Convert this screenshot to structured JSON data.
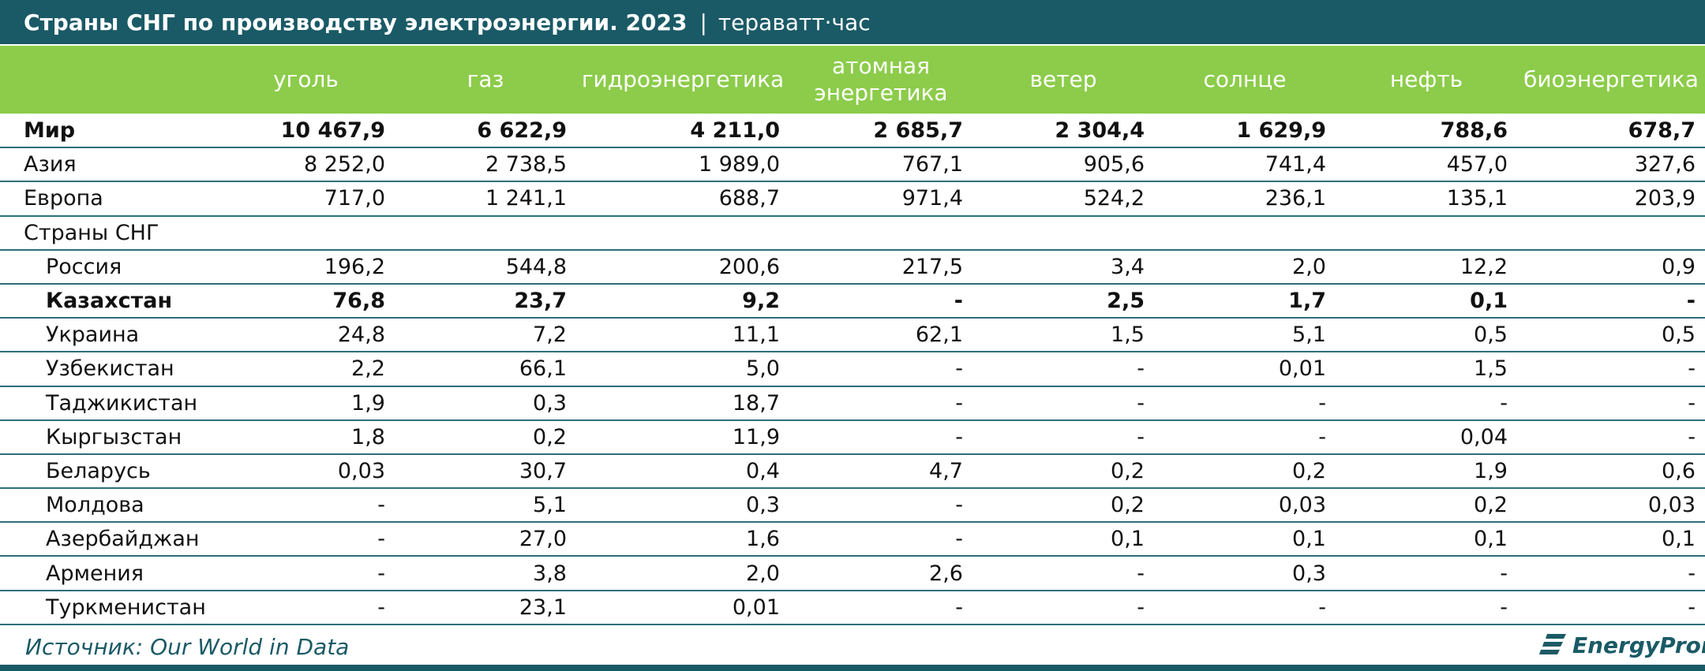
{
  "colors": {
    "title_bg": "#1a5a66",
    "header_bg": "#8ccc4a",
    "row_rule": "#2c6f7a",
    "source_text": "#1a5a66"
  },
  "title": {
    "main": "Страны СНГ по производству электроэнергии. 2023",
    "separator": "|",
    "unit": "тераватт·час"
  },
  "chart_data": {
    "type": "table",
    "columns": [
      "уголь",
      "газ",
      "гидроэнергетика",
      "атомная энергетика",
      "ветер",
      "солнце",
      "нефть",
      "биоэнергетика"
    ],
    "rows": [
      {
        "name": "Мир",
        "bold": true,
        "indent": false,
        "values": [
          "10 467,9",
          "6 622,9",
          "4 211,0",
          "2 685,7",
          "2 304,4",
          "1 629,9",
          "788,6",
          "678,7"
        ]
      },
      {
        "name": "Азия",
        "bold": false,
        "indent": false,
        "values": [
          "8 252,0",
          "2 738,5",
          "1 989,0",
          "767,1",
          "905,6",
          "741,4",
          "457,0",
          "327,6"
        ]
      },
      {
        "name": "Европа",
        "bold": false,
        "indent": false,
        "values": [
          "717,0",
          "1 241,1",
          "688,7",
          "971,4",
          "524,2",
          "236,1",
          "135,1",
          "203,9"
        ]
      },
      {
        "name": "Страны СНГ",
        "bold": false,
        "indent": false,
        "values": [
          "",
          "",
          "",
          "",
          "",
          "",
          "",
          ""
        ]
      },
      {
        "name": "Россия",
        "bold": false,
        "indent": true,
        "values": [
          "196,2",
          "544,8",
          "200,6",
          "217,5",
          "3,4",
          "2,0",
          "12,2",
          "0,9"
        ]
      },
      {
        "name": "Казахстан",
        "bold": true,
        "indent": true,
        "values": [
          "76,8",
          "23,7",
          "9,2",
          "-",
          "2,5",
          "1,7",
          "0,1",
          "-"
        ]
      },
      {
        "name": "Украина",
        "bold": false,
        "indent": true,
        "values": [
          "24,8",
          "7,2",
          "11,1",
          "62,1",
          "1,5",
          "5,1",
          "0,5",
          "0,5"
        ]
      },
      {
        "name": "Узбекистан",
        "bold": false,
        "indent": true,
        "values": [
          "2,2",
          "66,1",
          "5,0",
          "-",
          "-",
          "0,01",
          "1,5",
          "-"
        ]
      },
      {
        "name": "Таджикистан",
        "bold": false,
        "indent": true,
        "values": [
          "1,9",
          "0,3",
          "18,7",
          "-",
          "-",
          "-",
          "-",
          "-"
        ]
      },
      {
        "name": "Кыргызстан",
        "bold": false,
        "indent": true,
        "values": [
          "1,8",
          "0,2",
          "11,9",
          "-",
          "-",
          "-",
          "0,04",
          "-"
        ]
      },
      {
        "name": "Беларусь",
        "bold": false,
        "indent": true,
        "values": [
          "0,03",
          "30,7",
          "0,4",
          "4,7",
          "0,2",
          "0,2",
          "1,9",
          "0,6"
        ]
      },
      {
        "name": "Молдова",
        "bold": false,
        "indent": true,
        "values": [
          "-",
          "5,1",
          "0,3",
          "-",
          "0,2",
          "0,03",
          "0,2",
          "0,03"
        ]
      },
      {
        "name": "Азербайджан",
        "bold": false,
        "indent": true,
        "values": [
          "-",
          "27,0",
          "1,6",
          "-",
          "0,1",
          "0,1",
          "0,1",
          "0,1"
        ]
      },
      {
        "name": "Армения",
        "bold": false,
        "indent": true,
        "values": [
          "-",
          "3,8",
          "2,0",
          "2,6",
          "-",
          "0,3",
          "-",
          "-"
        ]
      },
      {
        "name": "Туркменистан",
        "bold": false,
        "indent": true,
        "values": [
          "-",
          "23,1",
          "0,01",
          "-",
          "-",
          "-",
          "-",
          "-"
        ]
      }
    ]
  },
  "footer": {
    "source": "Источник: Our World in Data",
    "logo_text": "EnergyProm",
    "logo_icon": "energyprom-logo-icon"
  }
}
